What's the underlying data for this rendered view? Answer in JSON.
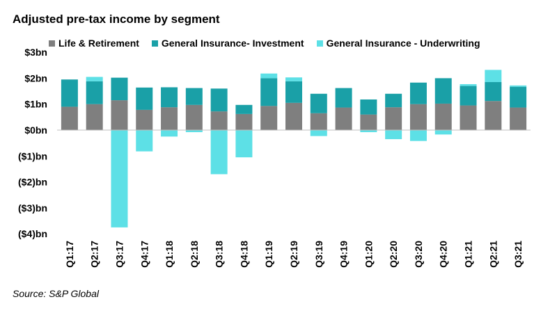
{
  "chart_data": {
    "type": "bar",
    "stacked": true,
    "title": "Adjusted pre-tax income by segment",
    "source": "Source: S&P Global",
    "xlabel": "",
    "ylabel": "",
    "ylim": [
      -4,
      3
    ],
    "yticks": [
      3,
      2,
      1,
      0,
      -1,
      -2,
      -3,
      -4
    ],
    "ytick_labels": [
      "$3bn",
      "$2bn",
      "$1bn",
      "$0bn",
      "($1)bn",
      "($2)bn",
      "($3)bn",
      "($4)bn"
    ],
    "legend_position": "top",
    "categories": [
      "Q1:17",
      "Q2:17",
      "Q3:17",
      "Q4:17",
      "Q1:18",
      "Q2:18",
      "Q3:18",
      "Q4:18",
      "Q1:19",
      "Q2:19",
      "Q3:19",
      "Q4:19",
      "Q1:20",
      "Q2:20",
      "Q3:20",
      "Q4:20",
      "Q1:21",
      "Q2:21",
      "Q3:21"
    ],
    "series": [
      {
        "name": "Life & Retirement",
        "color": "#7f7f7f",
        "values": [
          0.9,
          1.0,
          1.15,
          0.78,
          0.88,
          0.97,
          0.72,
          0.62,
          0.93,
          1.05,
          0.65,
          0.87,
          0.6,
          0.88,
          1.0,
          1.02,
          0.95,
          1.12,
          0.87
        ]
      },
      {
        "name": "General Insurance- Investment",
        "color": "#1aa0a7",
        "values": [
          1.05,
          0.88,
          0.87,
          0.86,
          0.77,
          0.65,
          0.88,
          0.35,
          1.07,
          0.83,
          0.75,
          0.75,
          0.58,
          0.52,
          0.83,
          0.98,
          0.75,
          0.73,
          0.8
        ]
      },
      {
        "name": "General Insurance - Underwriting",
        "color": "#5de0e6",
        "values": [
          0.0,
          0.17,
          -3.75,
          -0.82,
          -0.25,
          -0.08,
          -1.7,
          -1.05,
          0.18,
          0.15,
          -0.23,
          0.0,
          -0.08,
          -0.35,
          -0.42,
          -0.17,
          0.07,
          0.47,
          0.05
        ]
      }
    ]
  }
}
